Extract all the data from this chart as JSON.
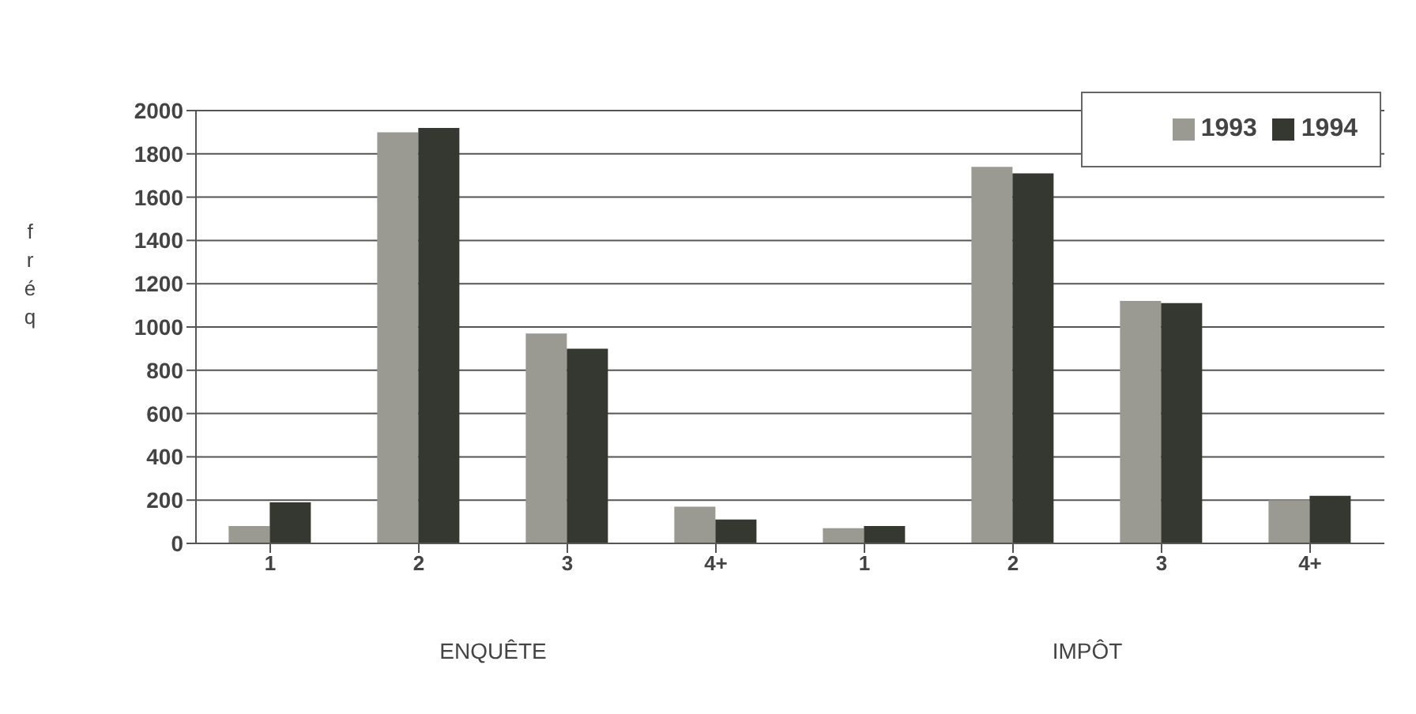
{
  "chart_data": {
    "type": "bar",
    "categories": [
      "1",
      "2",
      "3",
      "4+",
      "1",
      "2",
      "3",
      "4+"
    ],
    "series": [
      {
        "name": "1993",
        "color": "#9a9a92",
        "values": [
          80,
          1900,
          970,
          170,
          70,
          1740,
          1120,
          200
        ]
      },
      {
        "name": "1994",
        "color": "#353830",
        "values": [
          190,
          1920,
          900,
          110,
          80,
          1710,
          1110,
          220
        ]
      }
    ],
    "ylabel": "fréq",
    "ylim": [
      0,
      2000
    ],
    "yticks": [
      0,
      200,
      400,
      600,
      800,
      1000,
      1200,
      1400,
      1600,
      1800,
      2000
    ],
    "grid": "y",
    "legend": "top right",
    "annotations": [
      "ENQUÊTE",
      "IMPÔT"
    ]
  }
}
